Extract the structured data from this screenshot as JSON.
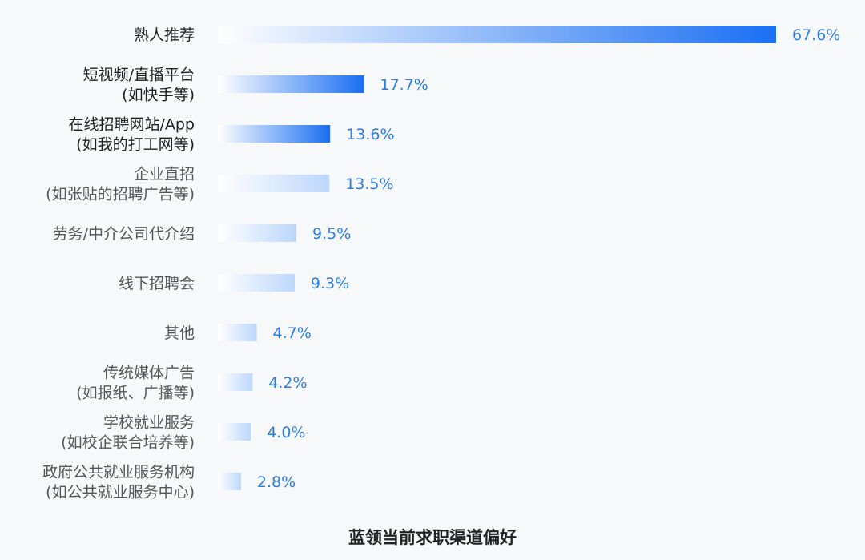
{
  "chart_data": {
    "type": "bar",
    "orientation": "horizontal",
    "title": "蓝领当前求职渠道偏好",
    "categories": [
      [
        "熟人推荐"
      ],
      [
        "短视频/直播平台",
        "(如快手等)"
      ],
      [
        "在线招聘网站/App",
        "(如我的打工网等)"
      ],
      [
        "企业直招",
        "(如张贴的招聘广告等)"
      ],
      [
        "劳务/中介公司代介绍"
      ],
      [
        "线下招聘会"
      ],
      [
        "其他"
      ],
      [
        "传统媒体广告",
        "(如报纸、广播等)"
      ],
      [
        "学校就业服务",
        "(如校企联合培养等)"
      ],
      [
        "政府公共就业服务机构",
        "(如公共就业服务中心)"
      ]
    ],
    "values": [
      67.6,
      17.7,
      13.6,
      13.5,
      9.5,
      9.3,
      4.7,
      4.2,
      4.0,
      2.8
    ],
    "value_labels": [
      "67.6%",
      "17.7%",
      "13.6%",
      "13.5%",
      "9.5%",
      "9.3%",
      "4.7%",
      "4.2%",
      "4.0%",
      "2.8%"
    ],
    "unit": "%",
    "highlight_indices": [
      0,
      1,
      2
    ],
    "colors": {
      "bar_strong": "#1a6ff2",
      "bar_light": "#bcd7fb",
      "bar_start": "#ffffff",
      "value_text": "#2a7de1",
      "label_text": "#1f1f1f",
      "label_muted": "#555555"
    },
    "grid": false,
    "legend": "none"
  }
}
